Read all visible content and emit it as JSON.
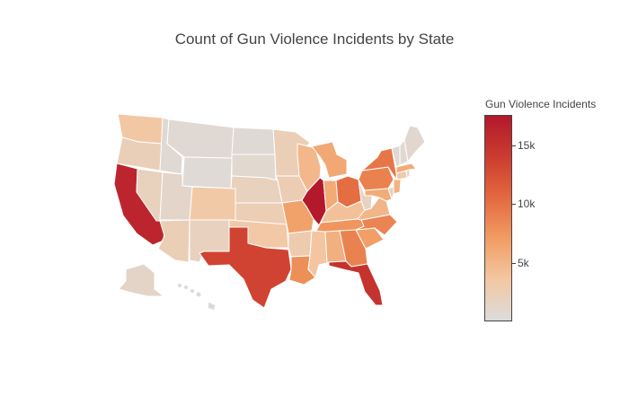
{
  "title": "Count of Gun Violence Incidents by State",
  "colorbar": {
    "title": "Gun Violence Incidents",
    "ticks": [
      "5k",
      "10k",
      "15k"
    ],
    "tick_values": [
      5000,
      10000,
      15000
    ],
    "range": [
      0,
      17600
    ],
    "colorscale": [
      "#dcdcdc",
      "#f3c7a2",
      "#f19d63",
      "#e3693f",
      "#cc3c30",
      "#b2182b"
    ]
  },
  "chart_data": {
    "type": "choropleth",
    "title": "Count of Gun Violence Incidents by State",
    "legend": "colorbar-right",
    "states": [
      {
        "code": "WA",
        "value": 3400
      },
      {
        "code": "OR",
        "value": 2200
      },
      {
        "code": "CA",
        "value": 16300
      },
      {
        "code": "NV",
        "value": 1900
      },
      {
        "code": "ID",
        "value": 600
      },
      {
        "code": "MT",
        "value": 600
      },
      {
        "code": "WY",
        "value": 400
      },
      {
        "code": "UT",
        "value": 1100
      },
      {
        "code": "AZ",
        "value": 2300
      },
      {
        "code": "NM",
        "value": 1800
      },
      {
        "code": "CO",
        "value": 3200
      },
      {
        "code": "ND",
        "value": 500
      },
      {
        "code": "SD",
        "value": 700
      },
      {
        "code": "NE",
        "value": 1900
      },
      {
        "code": "KS",
        "value": 2400
      },
      {
        "code": "OK",
        "value": 3300
      },
      {
        "code": "TX",
        "value": 13500
      },
      {
        "code": "MN",
        "value": 2300
      },
      {
        "code": "IA",
        "value": 2500
      },
      {
        "code": "MO",
        "value": 6600
      },
      {
        "code": "AR",
        "value": 2800
      },
      {
        "code": "LA",
        "value": 8000
      },
      {
        "code": "WI",
        "value": 4800
      },
      {
        "code": "IL",
        "value": 17500
      },
      {
        "code": "MI",
        "value": 6100
      },
      {
        "code": "IN",
        "value": 5900
      },
      {
        "code": "OH",
        "value": 10300
      },
      {
        "code": "KY",
        "value": 4000
      },
      {
        "code": "TN",
        "value": 7600
      },
      {
        "code": "MS",
        "value": 3600
      },
      {
        "code": "AL",
        "value": 5500
      },
      {
        "code": "GA",
        "value": 8900
      },
      {
        "code": "FL",
        "value": 15000
      },
      {
        "code": "SC",
        "value": 6900
      },
      {
        "code": "NC",
        "value": 8700
      },
      {
        "code": "VA",
        "value": 5000
      },
      {
        "code": "WV",
        "value": 1500
      },
      {
        "code": "PA",
        "value": 8900
      },
      {
        "code": "NY",
        "value": 9700
      },
      {
        "code": "NJ",
        "value": 5300
      },
      {
        "code": "MD",
        "value": 5800
      },
      {
        "code": "DE",
        "value": 1700
      },
      {
        "code": "CT",
        "value": 3100
      },
      {
        "code": "RI",
        "value": 900
      },
      {
        "code": "MA",
        "value": 5900
      },
      {
        "code": "VT",
        "value": 500
      },
      {
        "code": "NH",
        "value": 600
      },
      {
        "code": "ME",
        "value": 800
      },
      {
        "code": "AK",
        "value": 1300
      },
      {
        "code": "HI",
        "value": 300
      }
    ]
  }
}
